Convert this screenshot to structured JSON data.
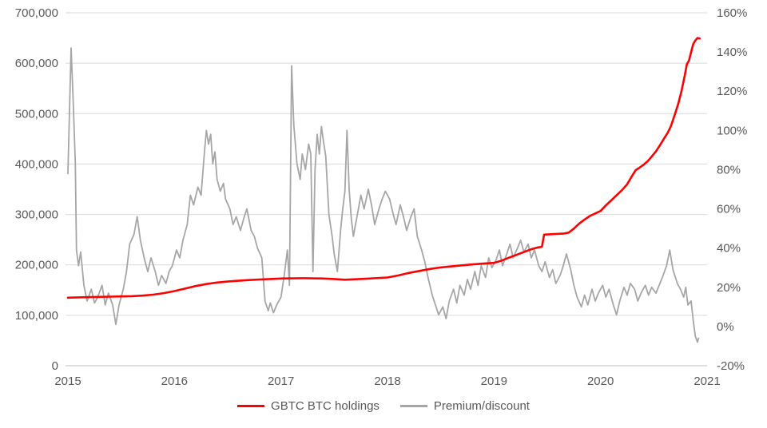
{
  "colors": {
    "holdings_line": "#ff0000",
    "premium_line": "#a6a6a6",
    "gridline": "#d9d9d9",
    "axis_line": "#bfbfbf",
    "tick_text": "#595959",
    "background": "#ffffff"
  },
  "chart_data": {
    "type": "line",
    "title": "",
    "grid": true,
    "legend_position": "bottom",
    "x_axis": {
      "min": 2015,
      "max": 2021,
      "tick_labels": [
        "2015",
        "2016",
        "2017",
        "2018",
        "2019",
        "2020",
        "2021"
      ]
    },
    "left_axis": {
      "min": 0,
      "max": 700000,
      "tick_step": 100000,
      "tick_labels": [
        "700,000",
        "600,000",
        "500,000",
        "400,000",
        "300,000",
        "200,000",
        "100,000",
        "0"
      ]
    },
    "right_axis": {
      "min": -20,
      "max": 160,
      "tick_step": 20,
      "tick_labels": [
        "160%",
        "140%",
        "120%",
        "100%",
        "80%",
        "60%",
        "40%",
        "20%",
        "0%",
        "-20%"
      ]
    },
    "series": [
      {
        "name": "GBTC BTC holdings",
        "axis": "left",
        "color": "#ff0000",
        "points": [
          [
            2015.0,
            135000
          ],
          [
            2015.1,
            135500
          ],
          [
            2015.2,
            136000
          ],
          [
            2015.3,
            136500
          ],
          [
            2015.4,
            137000
          ],
          [
            2015.5,
            137500
          ],
          [
            2015.6,
            138000
          ],
          [
            2015.7,
            139000
          ],
          [
            2015.8,
            141000
          ],
          [
            2015.9,
            144000
          ],
          [
            2016.0,
            148000
          ],
          [
            2016.1,
            153000
          ],
          [
            2016.2,
            158000
          ],
          [
            2016.3,
            162000
          ],
          [
            2016.4,
            165000
          ],
          [
            2016.5,
            167000
          ],
          [
            2016.6,
            168500
          ],
          [
            2016.7,
            170000
          ],
          [
            2016.8,
            171000
          ],
          [
            2016.9,
            172000
          ],
          [
            2017.0,
            173000
          ],
          [
            2017.2,
            173500
          ],
          [
            2017.4,
            173000
          ],
          [
            2017.5,
            172000
          ],
          [
            2017.6,
            170500
          ],
          [
            2017.8,
            172500
          ],
          [
            2018.0,
            175000
          ],
          [
            2018.1,
            179000
          ],
          [
            2018.2,
            184000
          ],
          [
            2018.3,
            188000
          ],
          [
            2018.4,
            192000
          ],
          [
            2018.5,
            195000
          ],
          [
            2018.6,
            197000
          ],
          [
            2018.7,
            199000
          ],
          [
            2018.8,
            201000
          ],
          [
            2018.9,
            202500
          ],
          [
            2019.0,
            204000
          ],
          [
            2019.05,
            207000
          ],
          [
            2019.1,
            211000
          ],
          [
            2019.15,
            215000
          ],
          [
            2019.2,
            219000
          ],
          [
            2019.25,
            223000
          ],
          [
            2019.3,
            227000
          ],
          [
            2019.35,
            231000
          ],
          [
            2019.4,
            234000
          ],
          [
            2019.45,
            236000
          ],
          [
            2019.47,
            260000
          ],
          [
            2019.55,
            261000
          ],
          [
            2019.65,
            262000
          ],
          [
            2019.7,
            264000
          ],
          [
            2019.75,
            272000
          ],
          [
            2019.8,
            282000
          ],
          [
            2019.85,
            290000
          ],
          [
            2019.9,
            297000
          ],
          [
            2019.95,
            302000
          ],
          [
            2020.0,
            307000
          ],
          [
            2020.05,
            318000
          ],
          [
            2020.1,
            328000
          ],
          [
            2020.15,
            338000
          ],
          [
            2020.2,
            348000
          ],
          [
            2020.25,
            360000
          ],
          [
            2020.3,
            378000
          ],
          [
            2020.33,
            388000
          ],
          [
            2020.36,
            392000
          ],
          [
            2020.4,
            398000
          ],
          [
            2020.44,
            405000
          ],
          [
            2020.48,
            415000
          ],
          [
            2020.52,
            425000
          ],
          [
            2020.56,
            438000
          ],
          [
            2020.6,
            452000
          ],
          [
            2020.63,
            462000
          ],
          [
            2020.66,
            475000
          ],
          [
            2020.7,
            500000
          ],
          [
            2020.73,
            520000
          ],
          [
            2020.76,
            545000
          ],
          [
            2020.79,
            575000
          ],
          [
            2020.81,
            598000
          ],
          [
            2020.83,
            605000
          ],
          [
            2020.85,
            622000
          ],
          [
            2020.87,
            638000
          ],
          [
            2020.89,
            645000
          ],
          [
            2020.91,
            650000
          ],
          [
            2020.93,
            649000
          ]
        ]
      },
      {
        "name": "Premium/discount",
        "axis": "right",
        "color": "#a6a6a6",
        "points": [
          [
            2015.0,
            78
          ],
          [
            2015.03,
            142
          ],
          [
            2015.05,
            114
          ],
          [
            2015.07,
            83
          ],
          [
            2015.08,
            39
          ],
          [
            2015.1,
            31
          ],
          [
            2015.12,
            38
          ],
          [
            2015.15,
            21
          ],
          [
            2015.18,
            13
          ],
          [
            2015.22,
            19
          ],
          [
            2015.25,
            12
          ],
          [
            2015.28,
            15
          ],
          [
            2015.32,
            21
          ],
          [
            2015.35,
            11
          ],
          [
            2015.38,
            17
          ],
          [
            2015.42,
            11
          ],
          [
            2015.45,
            1
          ],
          [
            2015.48,
            11
          ],
          [
            2015.52,
            19
          ],
          [
            2015.55,
            28
          ],
          [
            2015.58,
            42
          ],
          [
            2015.62,
            47
          ],
          [
            2015.65,
            56
          ],
          [
            2015.68,
            44
          ],
          [
            2015.72,
            34
          ],
          [
            2015.75,
            28
          ],
          [
            2015.78,
            35
          ],
          [
            2015.82,
            28
          ],
          [
            2015.85,
            21
          ],
          [
            2015.88,
            26
          ],
          [
            2015.92,
            22
          ],
          [
            2015.95,
            28
          ],
          [
            2015.98,
            31
          ],
          [
            2016.02,
            39
          ],
          [
            2016.05,
            35
          ],
          [
            2016.08,
            44
          ],
          [
            2016.12,
            52
          ],
          [
            2016.15,
            67
          ],
          [
            2016.18,
            62
          ],
          [
            2016.22,
            71
          ],
          [
            2016.25,
            67
          ],
          [
            2016.28,
            88
          ],
          [
            2016.3,
            100
          ],
          [
            2016.32,
            93
          ],
          [
            2016.34,
            98
          ],
          [
            2016.36,
            83
          ],
          [
            2016.38,
            89
          ],
          [
            2016.4,
            75
          ],
          [
            2016.43,
            69
          ],
          [
            2016.46,
            73
          ],
          [
            2016.48,
            65
          ],
          [
            2016.52,
            60
          ],
          [
            2016.55,
            52
          ],
          [
            2016.58,
            56
          ],
          [
            2016.62,
            49
          ],
          [
            2016.65,
            55
          ],
          [
            2016.68,
            60
          ],
          [
            2016.72,
            49
          ],
          [
            2016.75,
            46
          ],
          [
            2016.78,
            40
          ],
          [
            2016.82,
            35
          ],
          [
            2016.85,
            13
          ],
          [
            2016.88,
            8
          ],
          [
            2016.9,
            12
          ],
          [
            2016.93,
            7
          ],
          [
            2016.96,
            11
          ],
          [
            2017.0,
            15
          ],
          [
            2017.03,
            26
          ],
          [
            2017.06,
            39
          ],
          [
            2017.08,
            21
          ],
          [
            2017.1,
            133
          ],
          [
            2017.12,
            103
          ],
          [
            2017.15,
            83
          ],
          [
            2017.18,
            75
          ],
          [
            2017.2,
            88
          ],
          [
            2017.23,
            80
          ],
          [
            2017.26,
            93
          ],
          [
            2017.28,
            88
          ],
          [
            2017.3,
            28
          ],
          [
            2017.32,
            80
          ],
          [
            2017.34,
            98
          ],
          [
            2017.36,
            88
          ],
          [
            2017.38,
            102
          ],
          [
            2017.4,
            94
          ],
          [
            2017.42,
            87
          ],
          [
            2017.45,
            57
          ],
          [
            2017.48,
            46
          ],
          [
            2017.5,
            37
          ],
          [
            2017.53,
            28
          ],
          [
            2017.56,
            49
          ],
          [
            2017.58,
            60
          ],
          [
            2017.6,
            69
          ],
          [
            2017.62,
            100
          ],
          [
            2017.64,
            70
          ],
          [
            2017.66,
            55
          ],
          [
            2017.68,
            46
          ],
          [
            2017.72,
            58
          ],
          [
            2017.75,
            67
          ],
          [
            2017.78,
            60
          ],
          [
            2017.82,
            70
          ],
          [
            2017.85,
            62
          ],
          [
            2017.88,
            52
          ],
          [
            2017.92,
            60
          ],
          [
            2017.95,
            65
          ],
          [
            2017.98,
            69
          ],
          [
            2018.02,
            65
          ],
          [
            2018.05,
            58
          ],
          [
            2018.08,
            52
          ],
          [
            2018.12,
            62
          ],
          [
            2018.15,
            56
          ],
          [
            2018.18,
            49
          ],
          [
            2018.22,
            56
          ],
          [
            2018.25,
            60
          ],
          [
            2018.28,
            46
          ],
          [
            2018.32,
            39
          ],
          [
            2018.35,
            33
          ],
          [
            2018.38,
            25
          ],
          [
            2018.42,
            16
          ],
          [
            2018.45,
            11
          ],
          [
            2018.48,
            6
          ],
          [
            2018.52,
            10
          ],
          [
            2018.55,
            4
          ],
          [
            2018.58,
            13
          ],
          [
            2018.62,
            19
          ],
          [
            2018.65,
            12
          ],
          [
            2018.68,
            21
          ],
          [
            2018.72,
            16
          ],
          [
            2018.75,
            24
          ],
          [
            2018.78,
            19
          ],
          [
            2018.82,
            28
          ],
          [
            2018.85,
            21
          ],
          [
            2018.88,
            31
          ],
          [
            2018.92,
            25
          ],
          [
            2018.95,
            35
          ],
          [
            2018.98,
            30
          ],
          [
            2019.02,
            34
          ],
          [
            2019.05,
            39
          ],
          [
            2019.08,
            31
          ],
          [
            2019.12,
            37
          ],
          [
            2019.15,
            42
          ],
          [
            2019.18,
            35
          ],
          [
            2019.22,
            40
          ],
          [
            2019.25,
            44
          ],
          [
            2019.28,
            38
          ],
          [
            2019.32,
            42
          ],
          [
            2019.35,
            35
          ],
          [
            2019.38,
            39
          ],
          [
            2019.42,
            31
          ],
          [
            2019.45,
            28
          ],
          [
            2019.48,
            33
          ],
          [
            2019.52,
            25
          ],
          [
            2019.55,
            29
          ],
          [
            2019.58,
            22
          ],
          [
            2019.62,
            26
          ],
          [
            2019.65,
            31
          ],
          [
            2019.68,
            37
          ],
          [
            2019.72,
            29
          ],
          [
            2019.75,
            21
          ],
          [
            2019.78,
            15
          ],
          [
            2019.82,
            10
          ],
          [
            2019.85,
            16
          ],
          [
            2019.88,
            11
          ],
          [
            2019.92,
            19
          ],
          [
            2019.95,
            13
          ],
          [
            2019.98,
            17
          ],
          [
            2020.02,
            21
          ],
          [
            2020.05,
            15
          ],
          [
            2020.08,
            19
          ],
          [
            2020.12,
            11
          ],
          [
            2020.15,
            6
          ],
          [
            2020.18,
            13
          ],
          [
            2020.22,
            20
          ],
          [
            2020.25,
            16
          ],
          [
            2020.28,
            22
          ],
          [
            2020.32,
            19
          ],
          [
            2020.35,
            13
          ],
          [
            2020.38,
            17
          ],
          [
            2020.42,
            21
          ],
          [
            2020.45,
            16
          ],
          [
            2020.48,
            20
          ],
          [
            2020.52,
            17
          ],
          [
            2020.55,
            21
          ],
          [
            2020.58,
            25
          ],
          [
            2020.62,
            31
          ],
          [
            2020.65,
            39
          ],
          [
            2020.68,
            29
          ],
          [
            2020.72,
            22
          ],
          [
            2020.75,
            19
          ],
          [
            2020.78,
            15
          ],
          [
            2020.8,
            20
          ],
          [
            2020.82,
            11
          ],
          [
            2020.85,
            13
          ],
          [
            2020.87,
            3
          ],
          [
            2020.89,
            -5
          ],
          [
            2020.91,
            -8
          ],
          [
            2020.92,
            -6
          ]
        ]
      }
    ],
    "legend": [
      {
        "label": "GBTC BTC holdings",
        "color": "#ff0000"
      },
      {
        "label": "Premium/discount",
        "color": "#a6a6a6"
      }
    ]
  }
}
